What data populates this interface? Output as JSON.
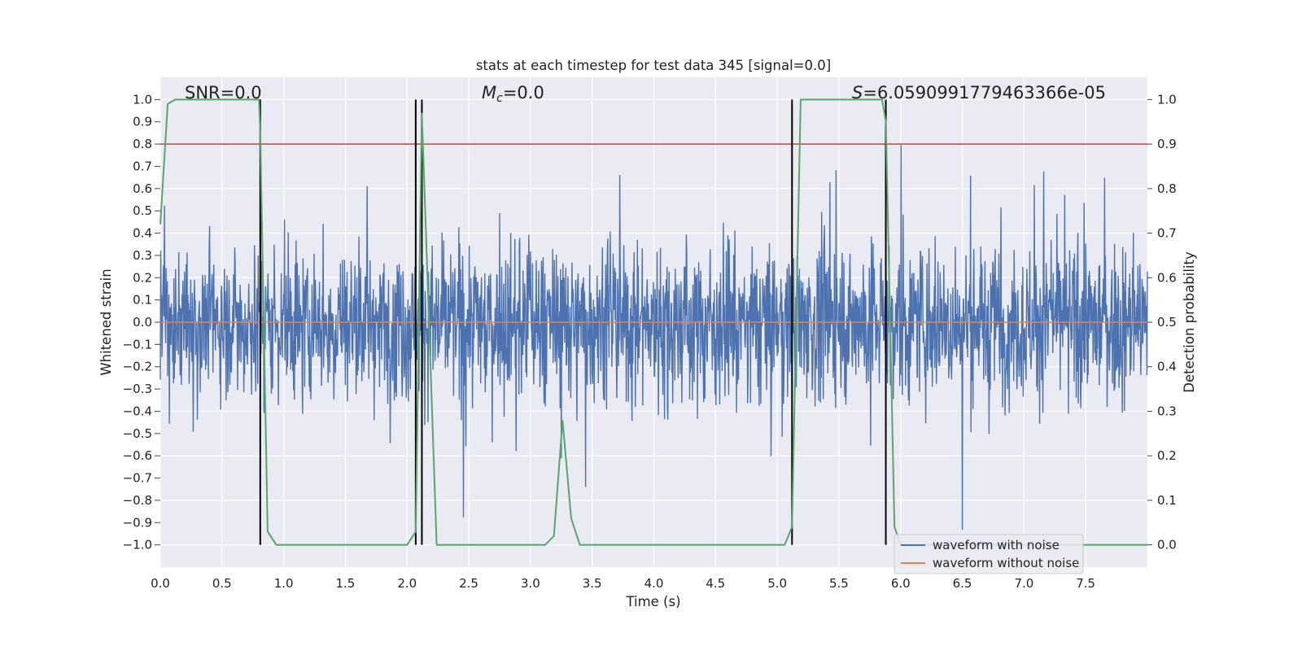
{
  "chart_data": {
    "type": "line",
    "title": "stats at each timestep for test data 345 [signal=0.0]",
    "xlabel": "Time (s)",
    "ylabel_left": "Whitened strain",
    "ylabel_right": "Detection probability",
    "xlim": [
      0.0,
      8.0
    ],
    "ylim_left": [
      -1.1,
      1.1
    ],
    "ylim_right": [
      -0.05,
      1.05
    ],
    "x_ticks": [
      "0.0",
      "0.5",
      "1.0",
      "1.5",
      "2.0",
      "2.5",
      "3.0",
      "3.5",
      "4.0",
      "4.5",
      "5.0",
      "5.5",
      "6.0",
      "6.5",
      "7.0",
      "7.5"
    ],
    "y_ticks_left": [
      "1.0",
      "0.9",
      "0.8",
      "0.7",
      "0.6",
      "0.5",
      "0.4",
      "0.3",
      "0.2",
      "0.1",
      "0.0",
      "−0.1",
      "−0.2",
      "−0.3",
      "−0.4",
      "−0.5",
      "−0.6",
      "−0.7",
      "−0.8",
      "−0.9",
      "−1.0"
    ],
    "y_ticks_right": [
      "1.0",
      "0.9",
      "0.8",
      "0.7",
      "0.6",
      "0.5",
      "0.4",
      "0.3",
      "0.2",
      "0.1",
      "0.0"
    ],
    "grid": true,
    "annotations": {
      "snr": "SNR=0.0",
      "mc_sym": "M",
      "mc_sub": "c",
      "mc_val": "=0.0",
      "s_sym": "S",
      "s_val": "=6.0590991779463366e-05"
    },
    "threshold": 0.9,
    "vlines": [
      0.81,
      2.07,
      2.12,
      5.12,
      5.88
    ],
    "series": [
      {
        "name": "waveform with noise",
        "axis": "left",
        "color": "#4c72b0",
        "description_stats": {
          "typical_band": [
            -0.4,
            0.4
          ],
          "max": 0.98,
          "min": -1.0
        }
      },
      {
        "name": "waveform without noise",
        "axis": "left",
        "color": "#dd8452",
        "values_constant": 0.0
      },
      {
        "name": "detection probability",
        "axis": "right",
        "color": "#55a868",
        "x": [
          0.0,
          0.06,
          0.12,
          0.18,
          0.8,
          0.81,
          0.87,
          0.94,
          1.0,
          2.0,
          2.07,
          2.12,
          2.24,
          3.12,
          3.19,
          3.26,
          3.33,
          3.4,
          5.06,
          5.12,
          5.19,
          5.25,
          5.85,
          5.88,
          5.95,
          6.0,
          8.0
        ],
        "y": [
          0.72,
          0.99,
          1.0,
          1.0,
          1.0,
          0.93,
          0.03,
          0.0,
          0.0,
          0.0,
          0.03,
          0.97,
          0.0,
          0.0,
          0.02,
          0.28,
          0.06,
          0.0,
          0.0,
          0.04,
          1.0,
          1.0,
          1.0,
          0.95,
          0.04,
          0.0,
          0.0
        ]
      },
      {
        "name": "threshold",
        "axis": "right",
        "color": "#c44e52",
        "values_constant": 0.9
      }
    ],
    "legend": {
      "position": "lower-right",
      "entries": [
        "waveform with noise",
        "waveform without noise"
      ]
    }
  }
}
